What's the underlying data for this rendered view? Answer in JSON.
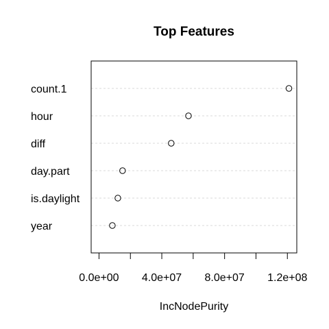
{
  "chart_data": {
    "type": "scatter",
    "title": "Top Features",
    "xlabel": "IncNodePurity",
    "ylabel": "",
    "categories": [
      "count.1",
      "hour",
      "diff",
      "day.part",
      "is.daylight",
      "year"
    ],
    "values": [
      121000000,
      57000000,
      46000000,
      15000000,
      12000000,
      8500000
    ],
    "xlim": [
      -5000000,
      126000000
    ],
    "xticks": [
      0,
      20000000,
      40000000,
      60000000,
      80000000,
      100000000,
      120000000
    ],
    "xtick_labels": [
      "0.0e+00",
      "",
      "4.0e+07",
      "",
      "8.0e+07",
      "",
      "1.2e+08"
    ],
    "grid": true,
    "legend": "none"
  }
}
